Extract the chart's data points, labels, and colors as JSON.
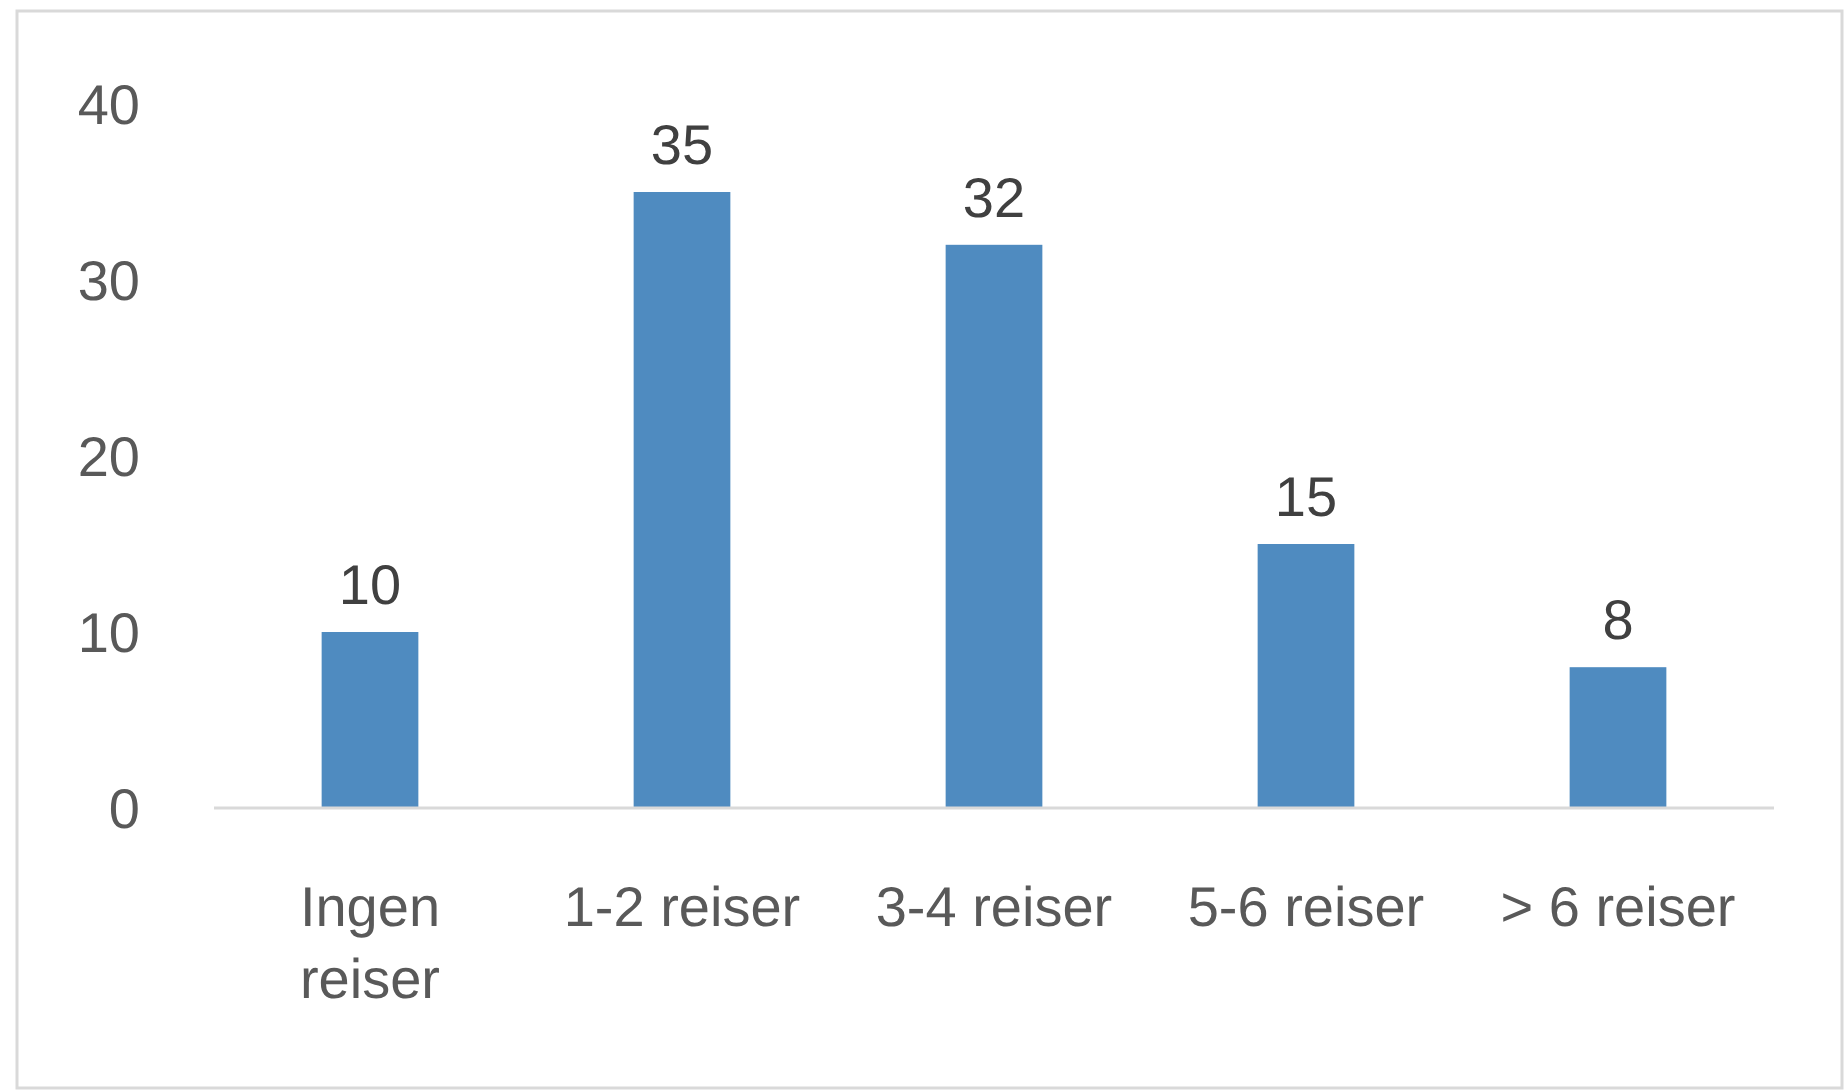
{
  "chart_data": {
    "type": "bar",
    "categories": [
      "Ingen reiser",
      "1-2 reiser",
      "3-4 reiser",
      "5-6 reiser",
      "> 6 reiser"
    ],
    "values": [
      10,
      35,
      32,
      15,
      8
    ],
    "color": "#4f8bc0",
    "ylim": [
      0,
      40
    ],
    "yticks": [
      0,
      10,
      20,
      30,
      40
    ],
    "data_labels": true
  }
}
